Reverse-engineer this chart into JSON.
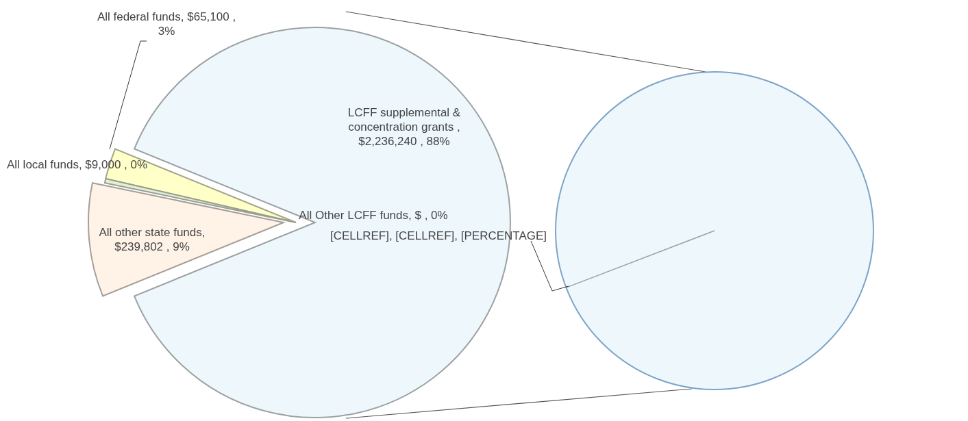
{
  "chart_data": {
    "type": "pie",
    "categories": [
      "All federal funds",
      "All local funds",
      "All other state funds",
      "All Other LCFF funds",
      "LCFF supplemental & concentration grants"
    ],
    "values": [
      65100,
      9000,
      239802,
      0,
      2236240
    ],
    "colors": [
      "#ffffc8",
      "#e6efd6",
      "#fff3e8",
      "#eef8fc",
      "#eef8fc"
    ],
    "value_labels": [
      ",  $65,100 , 3%",
      ", $9,000 , 0%",
      ", $239,802 , 9%",
      ", $ , 0%",
      " , $2,236,240 , 88%"
    ],
    "annotations": [
      "[CELLREF], [CELLREF], [PERCENTAGE]"
    ]
  }
}
